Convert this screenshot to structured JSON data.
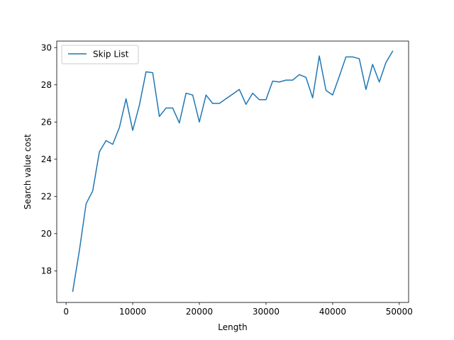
{
  "chart_data": {
    "type": "line",
    "title": "",
    "xlabel": "Length",
    "ylabel": "Search value cost",
    "xlim": [
      -1400,
      51400
    ],
    "ylim": [
      16.3,
      30.35
    ],
    "xticks": [
      0,
      10000,
      20000,
      30000,
      40000,
      50000
    ],
    "yticks": [
      18,
      20,
      22,
      24,
      26,
      28,
      30
    ],
    "grid": false,
    "legend_position": "upper-left",
    "series": [
      {
        "name": "Skip List",
        "color": "#1f77b4",
        "x": [
          1000,
          2000,
          3000,
          4000,
          5000,
          6000,
          7000,
          8000,
          9000,
          10000,
          11000,
          12000,
          13000,
          14000,
          15000,
          16000,
          17000,
          18000,
          19000,
          20000,
          21000,
          22000,
          23000,
          24000,
          25000,
          26000,
          27000,
          28000,
          29000,
          30000,
          31000,
          32000,
          33000,
          34000,
          35000,
          36000,
          37000,
          38000,
          39000,
          40000,
          41000,
          42000,
          43000,
          44000,
          45000,
          46000,
          47000,
          48000,
          49000
        ],
        "y": [
          16.9,
          19.1,
          21.6,
          22.3,
          24.4,
          25.0,
          24.8,
          25.7,
          27.25,
          25.55,
          26.9,
          28.7,
          28.65,
          26.3,
          26.75,
          26.75,
          25.95,
          27.55,
          27.45,
          26.0,
          27.45,
          27.0,
          27.0,
          27.25,
          27.5,
          27.75,
          26.95,
          27.55,
          27.2,
          27.2,
          28.2,
          28.15,
          28.25,
          28.25,
          28.55,
          28.4,
          27.3,
          29.55,
          27.7,
          27.45,
          28.45,
          29.5,
          29.5,
          29.4,
          27.75,
          29.1,
          28.15,
          29.2,
          29.8
        ]
      }
    ]
  }
}
